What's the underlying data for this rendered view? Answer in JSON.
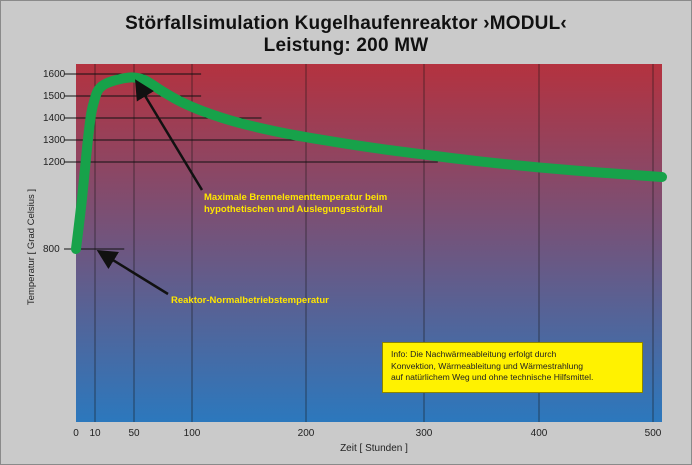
{
  "title_line1": "Störfallsimulation Kugelhaufenreaktor ›MODUL‹",
  "title_line2": "Leistung: 200 MW",
  "chart_data": {
    "type": "line",
    "xlabel": "Zeit [ Stunden ]",
    "ylabel": "Temperatur [ Grad Celsius ]",
    "x_ticks": [
      0,
      10,
      50,
      100,
      200,
      300,
      400,
      500
    ],
    "x_tick_labels": [
      "0",
      "10",
      "50",
      "100",
      "200",
      "300",
      "400",
      "500"
    ],
    "y_ticks": [
      800,
      1200,
      1300,
      1400,
      1500,
      1600
    ],
    "y_tick_labels": [
      "800",
      "1200",
      "1300",
      "1400",
      "1500",
      "1600"
    ],
    "xlim": [
      0,
      510
    ],
    "grid": "vertical lines",
    "reference_lines": [
      {
        "y": 1600,
        "x_end": 108
      },
      {
        "y": 1500,
        "x_end": 108
      },
      {
        "y": 1400,
        "x_end": 161
      },
      {
        "y": 1300,
        "x_end": 212
      },
      {
        "y": 1200,
        "x_end": 312
      },
      {
        "y": 800,
        "x_end": 40
      }
    ],
    "series": [
      {
        "x": [
          0,
          3,
          6,
          8,
          10,
          13,
          17,
          22,
          28,
          35,
          42,
          50,
          60,
          75,
          90,
          110,
          140,
          180,
          220,
          260,
          300,
          350,
          400,
          450,
          500,
          510
        ],
        "y": [
          800,
          1020,
          1280,
          1420,
          1490,
          1525,
          1545,
          1558,
          1568,
          1576,
          1582,
          1584,
          1570,
          1520,
          1475,
          1430,
          1380,
          1332,
          1295,
          1262,
          1234,
          1202,
          1175,
          1153,
          1134,
          1131
        ],
        "color": "#17a24a"
      }
    ],
    "annotations": [
      {
        "text": "Maximale Brennelementtemperatur beim hypothetischen und Auslegungsstörfall",
        "lines": [
          "Maximale Brennelementtemperatur beim",
          "hypothetischen und Auslegungsstörfall"
        ],
        "points_to": {
          "x": 50,
          "y": 1584
        }
      },
      {
        "text": "Reaktor-Normalbetriebstemperatur",
        "lines": [
          "Reaktor-Normalbetriebstemperatur"
        ],
        "points_to": {
          "x": 10,
          "y": 800
        }
      }
    ],
    "info_box": {
      "lines": [
        "Info: Die Nachwärmeableitung erfolgt durch",
        "Konvektion, Wärmeableitung und Wärmestrahlung",
        "auf natürlichem Weg und ohne technische Hilfsmittel."
      ],
      "background": "#fff200"
    },
    "background_gradient": {
      "top": "#b4323f",
      "bottom": "#2c78bd"
    },
    "annotation_color": "#ffe600"
  }
}
